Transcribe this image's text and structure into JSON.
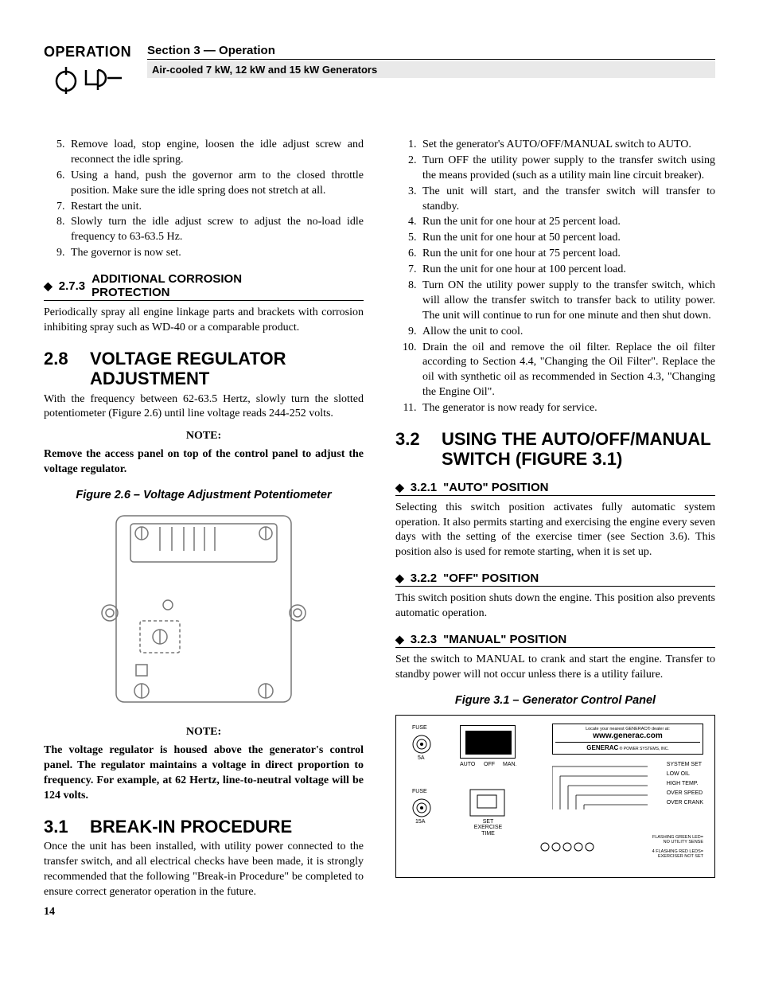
{
  "header": {
    "operation_label": "OPERATION",
    "section_line": "Section 3 — Operation",
    "sub_line": "Air-cooled 7 kW, 12 kW and 15 kW Generators"
  },
  "left_col": {
    "list_a": [
      "Remove load, stop engine, loosen the idle adjust screw and reconnect the idle spring.",
      "Using a hand, push the governor arm to the closed throttle position. Make sure the idle spring does not stretch at all.",
      "Restart the unit.",
      "Slowly turn the idle adjust screw to adjust the no-load idle frequency to 63-63.5 Hz.",
      "The governor is now set."
    ],
    "h273_num": "2.7.3",
    "h273_title": "ADDITIONAL CORROSION PROTECTION",
    "p273": "Periodically spray all engine linkage parts and brackets with corrosion inhibiting spray such as WD-40 or a comparable product.",
    "h28_num": "2.8",
    "h28_title": "VOLTAGE REGULATOR ADJUSTMENT",
    "p28": "With the frequency between 62-63.5 Hertz, slowly turn the slotted potentiometer (Figure 2.6) until line voltage reads 244-252 volts.",
    "note1_label": "NOTE:",
    "note1_body": "Remove the access panel on top of the control panel to adjust the voltage regulator.",
    "fig26_cap": "Figure 2.6 – Voltage Adjustment Potentiometer",
    "note2_label": "NOTE:",
    "note2_body": "The voltage regulator is housed above the generator's control panel. The regulator maintains a voltage in direct proportion to frequency. For example, at 62 Hertz, line-to-neutral voltage will be 124 volts.",
    "h31_num": "3.1",
    "h31_title": "BREAK-IN PROCEDURE",
    "p31": "Once the unit has been installed, with utility power connected to the transfer switch, and all electrical checks have been made, it is strongly recommended that the following \"Break-in Procedure\" be completed to ensure correct generator operation in the future.",
    "page_num": "14"
  },
  "right_col": {
    "list_b": [
      "Set the generator's AUTO/OFF/MANUAL switch to AUTO.",
      "Turn OFF the utility power supply to the transfer switch using the means provided (such as a utility main line circuit breaker).",
      "The unit will start, and the transfer switch will transfer to standby.",
      "Run the unit for one hour at 25 percent load.",
      "Run the unit for one hour at 50 percent load.",
      "Run the unit for one hour at 75 percent load.",
      "Run the unit for one hour at 100 percent load.",
      "Turn ON the utility power supply to the transfer switch, which will allow the transfer switch to transfer back to utility power. The unit will continue to run for one minute and then shut down.",
      "Allow the unit to cool.",
      "Drain the oil and remove the oil filter. Replace the oil filter according to Section 4.4, \"Changing the Oil Filter\". Replace the oil with synthetic oil as recommended in Section 4.3, \"Changing the Engine Oil\".",
      "The generator is now ready for service."
    ],
    "h32_num": "3.2",
    "h32_title": "USING THE AUTO/OFF/MANUAL SWITCH (FIGURE 3.1)",
    "h321_num": "3.2.1",
    "h321_title": "\"AUTO\" POSITION",
    "p321": "Selecting this switch position activates fully automatic system operation. It also permits starting and exercising the engine every seven days with the setting of the exercise timer (see Section 3.6). This position also is used for remote starting, when it is set up.",
    "h322_num": "3.2.2",
    "h322_title": "\"OFF\" POSITION",
    "p322": "This switch position shuts down the engine. This position also prevents automatic operation.",
    "h323_num": "3.2.3",
    "h323_title": "\"MANUAL\" POSITION",
    "p323": "Set the switch to MANUAL to crank and start the engine. Transfer to standby power will not occur unless there is a utility failure.",
    "fig31_cap": "Figure 3.1 – Generator Control Panel",
    "panel": {
      "fuse1": "FUSE",
      "amp1": "5A",
      "fuse2": "FUSE",
      "amp2": "15A",
      "auto": "AUTO",
      "off": "OFF",
      "man": "MAN.",
      "set_exercise": "SET\nEXERCISE\nTIME",
      "locate": "Locate your nearest GENERAC® dealer at:",
      "url": "www.generac.com",
      "brand": "GENERAC® POWER SYSTEMS, INC.",
      "leds": [
        "SYSTEM SET",
        "LOW OIL",
        "HIGH TEMP.",
        "OVER SPEED",
        "OVER CRANK"
      ],
      "legend1": "FLASHING GREEN LED=\nNO UTILITY SENSE",
      "legend2": "4 FLASHING RED LEDS=\nEXERCISER NOT SET"
    }
  }
}
